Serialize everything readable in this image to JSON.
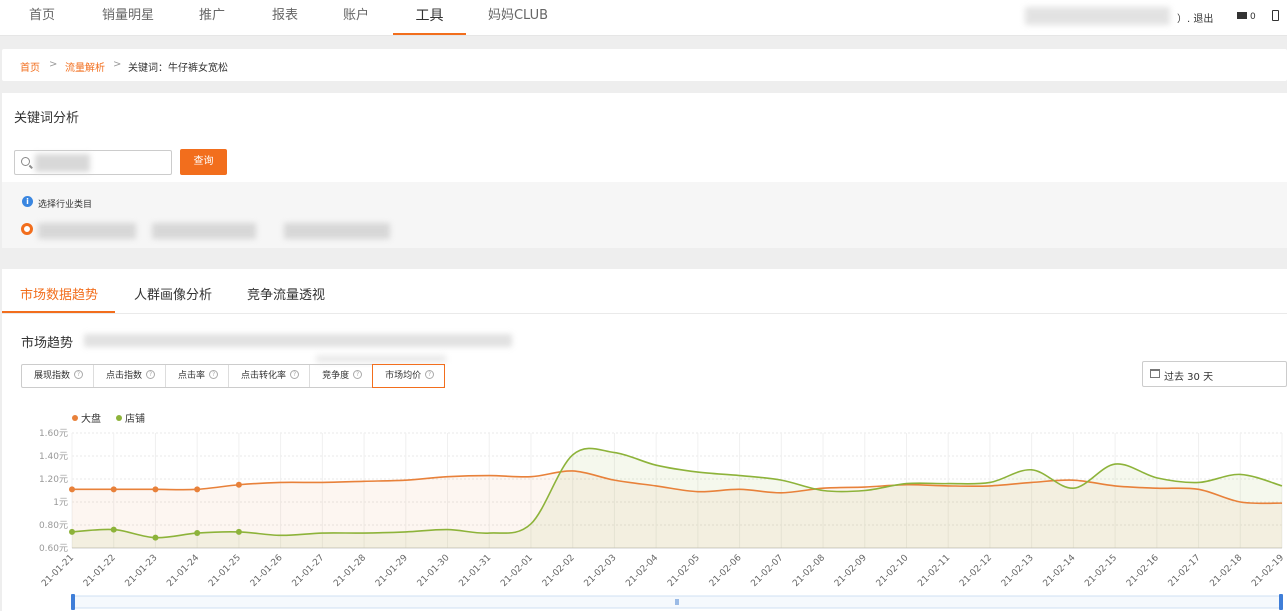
{
  "topnav": {
    "items": [
      {
        "label": "首页"
      },
      {
        "label": "销量明星"
      },
      {
        "label": "推广"
      },
      {
        "label": "报表"
      },
      {
        "label": "账户"
      },
      {
        "label": "工具"
      },
      {
        "label": "妈妈CLUB"
      }
    ],
    "active_index": 5,
    "logout_label": "）. 退出",
    "mail_count": "0"
  },
  "breadcrumb": {
    "home": "首页",
    "sep": ">",
    "parent": "流量解析",
    "current": "关键词：牛仔裤女宽松"
  },
  "keyword_panel": {
    "title": "关键词分析",
    "search_button": "查询",
    "category_label": "选择行业类目"
  },
  "tabs": [
    {
      "label": "市场数据趋势"
    },
    {
      "label": "人群画像分析"
    },
    {
      "label": "竞争流量透视"
    }
  ],
  "trend": {
    "title": "市场趋势",
    "title_suffix": "关",
    "metrics": [
      {
        "label": "展现指数"
      },
      {
        "label": "点击指数"
      },
      {
        "label": "点击率"
      },
      {
        "label": "点击转化率"
      },
      {
        "label": "竞争度"
      },
      {
        "label": "市场均价"
      }
    ],
    "active_metric_index": 5,
    "help_glyph": "?",
    "date_range": "过去 30 天"
  },
  "colors": {
    "accent": "#f26e1d",
    "series_market": "#e8813a",
    "series_shop": "#8db33a",
    "grid": "#e8e8e8"
  },
  "chart_data": {
    "type": "line",
    "x": [
      "21-01-21",
      "21-01-22",
      "21-01-23",
      "21-01-24",
      "21-01-25",
      "21-01-26",
      "21-01-27",
      "21-01-28",
      "21-01-29",
      "21-01-30",
      "21-01-31",
      "21-02-01",
      "21-02-02",
      "21-02-03",
      "21-02-04",
      "21-02-05",
      "21-02-06",
      "21-02-07",
      "21-02-08",
      "21-02-09",
      "21-02-10",
      "21-02-11",
      "21-02-12",
      "21-02-13",
      "21-02-14",
      "21-02-15",
      "21-02-16",
      "21-02-17",
      "21-02-18",
      "21-02-19"
    ],
    "yticks": [
      "1.60元",
      "1.40元",
      "1.20元",
      "1元",
      "0.80元",
      "0.60元"
    ],
    "ylim": [
      0.6,
      1.6
    ],
    "series": [
      {
        "name": "大盘",
        "color": "#e8813a",
        "values": [
          1.11,
          1.11,
          1.11,
          1.11,
          1.15,
          1.17,
          1.17,
          1.18,
          1.19,
          1.22,
          1.23,
          1.22,
          1.27,
          1.19,
          1.14,
          1.09,
          1.11,
          1.08,
          1.12,
          1.13,
          1.15,
          1.14,
          1.14,
          1.17,
          1.19,
          1.14,
          1.12,
          1.11,
          1.0,
          0.99
        ],
        "markers": 5
      },
      {
        "name": "店铺",
        "color": "#8db33a",
        "values": [
          0.74,
          0.76,
          0.69,
          0.73,
          0.74,
          0.71,
          0.73,
          0.73,
          0.74,
          0.76,
          0.73,
          0.81,
          1.41,
          1.43,
          1.32,
          1.26,
          1.23,
          1.19,
          1.1,
          1.1,
          1.16,
          1.16,
          1.17,
          1.28,
          1.12,
          1.33,
          1.21,
          1.17,
          1.24,
          1.14
        ],
        "markers": 5
      }
    ],
    "legend": "top-left",
    "grid": true,
    "area_fill": true,
    "zoom_slider": true
  }
}
